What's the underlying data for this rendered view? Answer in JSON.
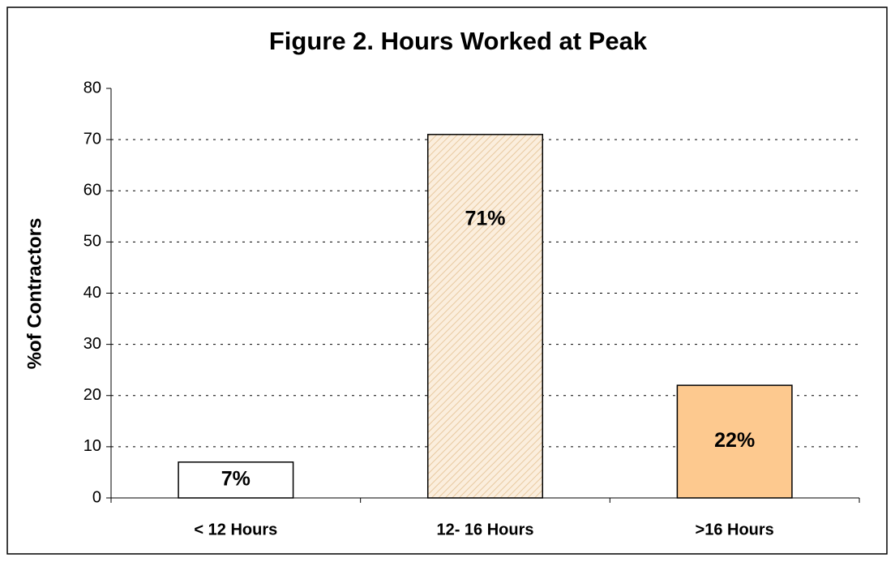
{
  "chart_data": {
    "type": "bar",
    "title": "Figure 2.  Hours Worked at Peak",
    "y_label": "%of Contractors",
    "categories": [
      "< 12 Hours",
      "12- 16 Hours",
      ">16 Hours"
    ],
    "values": [
      7,
      71,
      22
    ],
    "value_labels": [
      "7%",
      "71%",
      "22%"
    ],
    "colors": [
      "#ffffff",
      "#fbeedd",
      "#fdc98f"
    ],
    "hatch": [
      false,
      true,
      false
    ],
    "ylim": [
      0,
      80
    ],
    "yticks": [
      0,
      10,
      20,
      30,
      40,
      50,
      60,
      70,
      80
    ],
    "grid": true
  }
}
